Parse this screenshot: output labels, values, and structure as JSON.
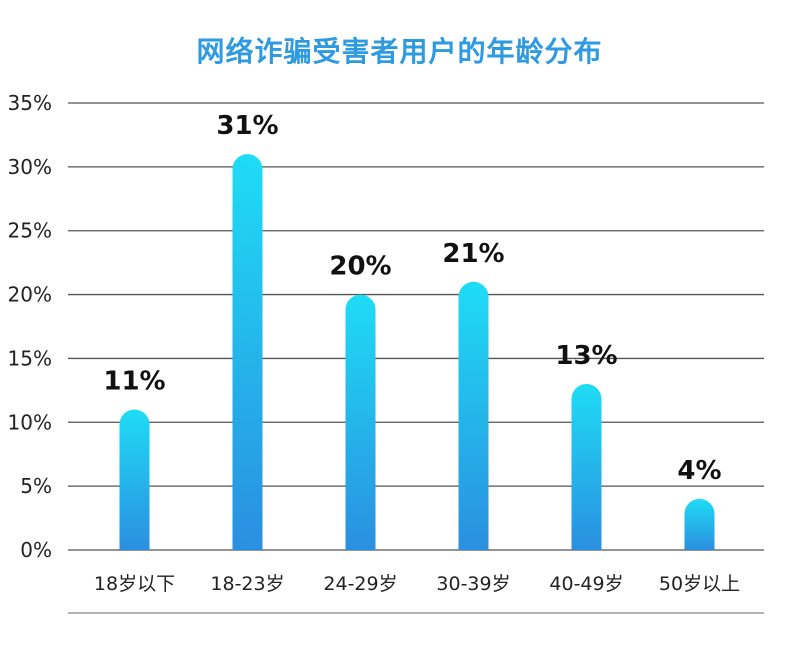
{
  "chart_data": {
    "type": "bar",
    "title": "网络诈骗受害者用户的年龄分布",
    "categories": [
      "18岁以下",
      "18-23岁",
      "24-29岁",
      "30-39岁",
      "40-49岁",
      "50岁以上"
    ],
    "values": [
      11,
      31,
      20,
      21,
      13,
      4
    ],
    "value_labels": [
      "11%",
      "31%",
      "20%",
      "21%",
      "13%",
      "4%"
    ],
    "yticks": [
      0,
      5,
      10,
      15,
      20,
      25,
      30,
      35
    ],
    "ytick_labels": [
      "0%",
      "5%",
      "10%",
      "15%",
      "20%",
      "25%",
      "30%",
      "35%"
    ],
    "ylim": [
      0,
      35
    ],
    "grid": true,
    "colors": {
      "bar_top": "#1fdcf5",
      "bar_bottom": "#2a8fe0",
      "title": "#2e9ae0",
      "grid": "#555555"
    }
  }
}
